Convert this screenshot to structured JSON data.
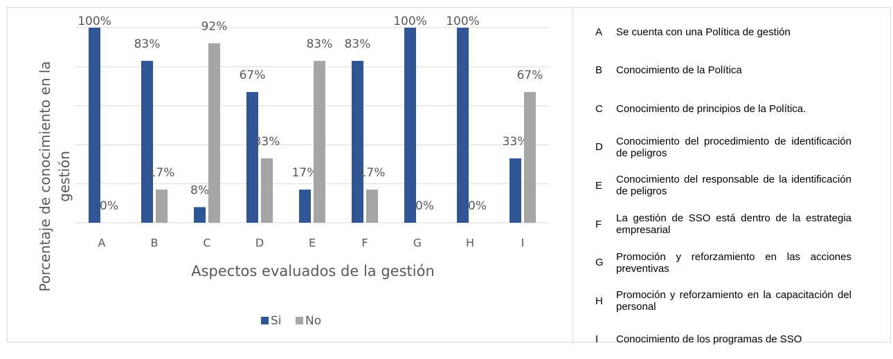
{
  "chart_data": {
    "type": "bar",
    "ylabel": [
      "Porcentaje de conocimiento en la",
      "gestión"
    ],
    "xlabel": "Aspectos evaluados de la gestión",
    "categories": [
      "A",
      "B",
      "C",
      "D",
      "E",
      "F",
      "G",
      "H",
      "I"
    ],
    "series": [
      {
        "name": "Si",
        "color": "#2f5597",
        "values": [
          100,
          83,
          8,
          67,
          17,
          83,
          100,
          100,
          33
        ],
        "value_labels": [
          "100%",
          "83%",
          "8%",
          "67%",
          "17%",
          "83%",
          "100%",
          "100%",
          "33%"
        ]
      },
      {
        "name": "No",
        "color": "#a5a5a5",
        "values": [
          0,
          17,
          92,
          33,
          83,
          17,
          0,
          0,
          67
        ],
        "value_labels": [
          "0%",
          "17%",
          "92%",
          "33%",
          "83%",
          "17%",
          "0%",
          "0%",
          "67%"
        ]
      }
    ],
    "ylim": [
      0,
      100
    ],
    "yticks": [
      0,
      20,
      40,
      60,
      80,
      100
    ],
    "grid": true,
    "legend": "bottom"
  },
  "descriptions": [
    {
      "key": "A",
      "text": "Se cuenta con una Política de gestión"
    },
    {
      "key": "B",
      "text": "Conocimiento de la Política"
    },
    {
      "key": "C",
      "text": "Conocimiento de principios de la Política."
    },
    {
      "key": "D",
      "text": "Conocimiento del procedimiento de identificación de peligros"
    },
    {
      "key": "E",
      "text": "Conocimiento del responsable de la identificación de peligros"
    },
    {
      "key": "F",
      "text": "La gestión de SSO está dentro de la estrategia empresarial"
    },
    {
      "key": "G",
      "text": "Promoción y reforzamiento en las acciones preventivas"
    },
    {
      "key": "H",
      "text": "Promoción y reforzamiento en la capacitación del personal"
    },
    {
      "key": "I",
      "text": "Conocimiento de los programas de SSO"
    }
  ]
}
